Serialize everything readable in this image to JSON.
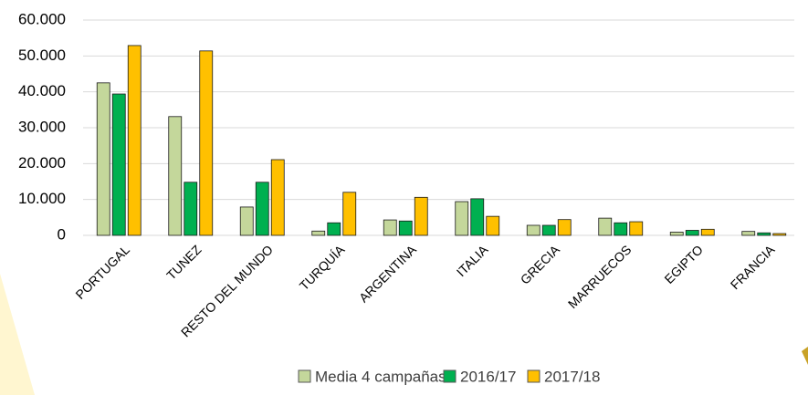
{
  "chart_data": {
    "type": "bar",
    "categories": [
      "PORTUGAL",
      "TUNEZ",
      "RESTO DEL MUNDO",
      "TURQUÍA",
      "ARGENTINA",
      "ITALIA",
      "GRECIA",
      "MARRUECOS",
      "EGIPTO",
      "FRANCIA"
    ],
    "series": [
      {
        "name": "Media 4 campañas",
        "color": "#c4d79b",
        "values": [
          42500,
          33100,
          7900,
          1200,
          4300,
          9400,
          2800,
          4800,
          900,
          1100
        ]
      },
      {
        "name": "2016/17",
        "color": "#00b050",
        "values": [
          39400,
          14800,
          14800,
          3500,
          4000,
          10200,
          2800,
          3500,
          1400,
          700
        ]
      },
      {
        "name": "2017/18",
        "color": "#ffc000",
        "values": [
          52900,
          51400,
          21100,
          12000,
          10600,
          5300,
          4400,
          3800,
          1700,
          500
        ]
      }
    ],
    "ylim": [
      0,
      60000
    ],
    "yticks": [
      0,
      {
        "value": 10000,
        "label": "10.000"
      },
      {
        "value": 20000,
        "label": "20.000"
      },
      {
        "value": 30000,
        "label": "30.000"
      },
      {
        "value": 40000,
        "label": "40.000"
      },
      {
        "value": 50000,
        "label": "50.000"
      },
      {
        "value": 60000,
        "label": "60.000"
      }
    ],
    "grid": true
  }
}
